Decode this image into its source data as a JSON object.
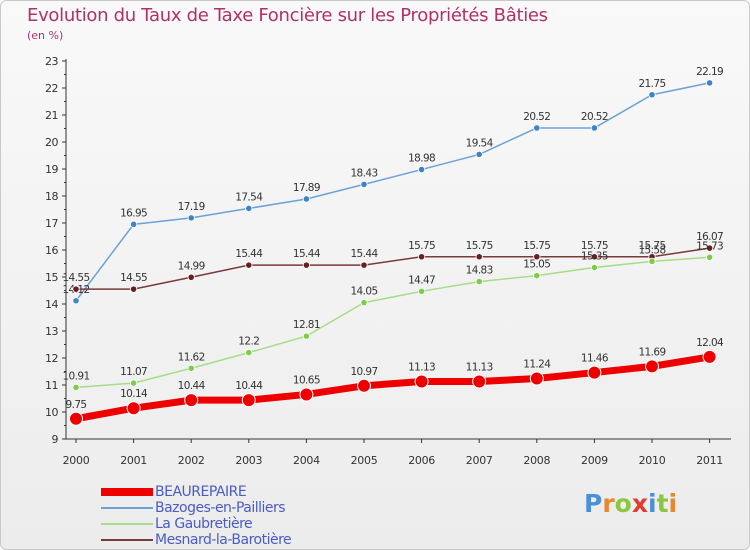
{
  "title": "Evolution du Taux de Taxe Foncière sur les Propriétés Bâties",
  "unit_label": "(en %)",
  "logo": {
    "letters": [
      {
        "ch": "P",
        "color": "#4a90d9"
      },
      {
        "ch": "r",
        "color": "#e8872c"
      },
      {
        "ch": "o",
        "color": "#8cc63f"
      },
      {
        "ch": "x",
        "color": "#e03c31"
      },
      {
        "ch": "i",
        "color": "#4a90d9"
      },
      {
        "ch": "t",
        "color": "#8cc63f"
      },
      {
        "ch": "i",
        "color": "#e8872c"
      }
    ]
  },
  "chart_data": {
    "type": "line",
    "title": "Evolution du Taux de Taxe Foncière sur les Propriétés Bâties",
    "ylabel": "(en %)",
    "xlabel": "",
    "x": [
      "2000",
      "2001",
      "2002",
      "2003",
      "2004",
      "2005",
      "2006",
      "2007",
      "2008",
      "2009",
      "2010",
      "2011"
    ],
    "ylim": [
      9,
      23
    ],
    "yticks": [
      "9",
      "10",
      "11",
      "12",
      "13",
      "14",
      "15",
      "16",
      "17",
      "18",
      "19",
      "20",
      "21",
      "22",
      "23"
    ],
    "grid": false,
    "legend_position": "bottom-left",
    "series": [
      {
        "name": "Bazoges-en-Pailliers",
        "color": "#6aa2d6",
        "point_color": "#3d85c6",
        "values": [
          14.12,
          16.95,
          17.19,
          17.54,
          17.89,
          18.43,
          18.98,
          19.54,
          20.52,
          20.52,
          21.75,
          22.19
        ],
        "labels": [
          "14.12",
          "16.95",
          "17.19",
          "17.54",
          "17.89",
          "18.43",
          "18.98",
          "19.54",
          "20.52",
          "20.52",
          "21.75",
          "22.19"
        ]
      },
      {
        "name": "Mesnard-la-Barotière",
        "color": "#7a3a3a",
        "point_color": "#6a1f1f",
        "values": [
          14.55,
          14.55,
          14.99,
          15.44,
          15.44,
          15.44,
          15.75,
          15.75,
          15.75,
          15.75,
          15.75,
          16.07
        ],
        "labels": [
          "14.55",
          "14.55",
          "14.99",
          "15.44",
          "15.44",
          "15.44",
          "15.75",
          "15.75",
          "15.75",
          "15.75",
          "15.75",
          "16.07"
        ]
      },
      {
        "name": "La Gaubretière",
        "color": "#a6dd86",
        "point_color": "#7ccd48",
        "values": [
          10.91,
          11.07,
          11.62,
          12.2,
          12.81,
          14.05,
          14.47,
          14.83,
          15.05,
          15.35,
          15.58,
          15.73
        ],
        "labels": [
          "10.91",
          "11.07",
          "11.62",
          "12.2",
          "12.81",
          "14.05",
          "14.47",
          "14.83",
          "15.05",
          "15.35",
          "15.58",
          "15.73"
        ]
      },
      {
        "name": "BEAUREPAIRE",
        "color": "#ee0000",
        "point_color": "#ee0000",
        "values": [
          9.75,
          10.14,
          10.44,
          10.44,
          10.65,
          10.97,
          11.13,
          11.13,
          11.24,
          11.46,
          11.69,
          12.04
        ],
        "labels": [
          "9.75",
          "10.14",
          "10.44",
          "10.44",
          "10.65",
          "10.97",
          "11.13",
          "11.13",
          "11.24",
          "11.46",
          "11.69",
          "12.04"
        ]
      }
    ],
    "legend": [
      "BEAUREPAIRE",
      "Bazoges-en-Pailliers",
      "La Gaubretière",
      "Mesnard-la-Barotière"
    ]
  }
}
